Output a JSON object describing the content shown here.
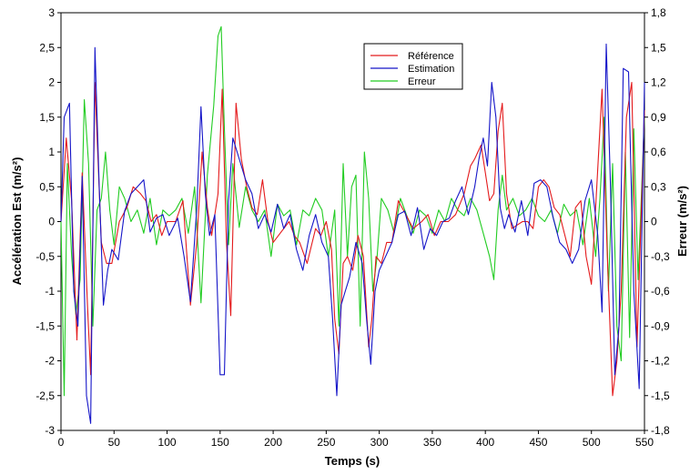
{
  "chart_data": {
    "type": "line",
    "xlabel": "Temps (s)",
    "ylabel_left": "Accélération Est (m/s²)",
    "ylabel_right": "Erreur (m/s²)",
    "xlim": [
      0,
      550
    ],
    "ylim_left": [
      -3,
      3
    ],
    "ylim_right": [
      -1.8,
      1.8
    ],
    "xticks": [
      "0",
      "50",
      "100",
      "150",
      "200",
      "250",
      "300",
      "350",
      "400",
      "450",
      "500",
      "550"
    ],
    "yticks_left": [
      "-3",
      "-2,5",
      "-2",
      "-1,5",
      "-1",
      "-0,5",
      "0",
      "0,5",
      "1",
      "1,5",
      "2",
      "2,5",
      "3"
    ],
    "yticks_right": [
      "-1,8",
      "-1,5",
      "-1,2",
      "-0,9",
      "-0,6",
      "-0,3",
      "0",
      "0,3",
      "0,6",
      "0,9",
      "1,2",
      "1,5",
      "1,8"
    ],
    "grid": false,
    "legend_position": "top-center",
    "series": [
      {
        "name": "Référence",
        "color": "#e41a1c",
        "axis": "left",
        "x": [
          0,
          5,
          10,
          15,
          20,
          25,
          28,
          32,
          38,
          43,
          48,
          55,
          62,
          68,
          75,
          80,
          85,
          90,
          95,
          100,
          108,
          115,
          122,
          128,
          133,
          138,
          142,
          148,
          152,
          156,
          160,
          165,
          170,
          175,
          180,
          185,
          190,
          195,
          200,
          205,
          210,
          215,
          220,
          225,
          232,
          240,
          245,
          250,
          255,
          258,
          262,
          266,
          270,
          275,
          280,
          285,
          290,
          293,
          297,
          302,
          307,
          312,
          318,
          325,
          332,
          340,
          346,
          352,
          358,
          365,
          372,
          380,
          386,
          390,
          396,
          400,
          404,
          408,
          412,
          416,
          420,
          425,
          430,
          435,
          440,
          445,
          450,
          455,
          460,
          465,
          470,
          475,
          480,
          485,
          490,
          495,
          500,
          505,
          510,
          515,
          520,
          524,
          528,
          533,
          538,
          543,
          550
        ],
        "y": [
          0,
          1.2,
          0.3,
          -1.7,
          0.7,
          -1.2,
          -2.2,
          2.0,
          -0.3,
          -0.6,
          -0.6,
          0,
          0.2,
          0.5,
          0.4,
          0.3,
          0,
          0.1,
          -0.2,
          0,
          0,
          0.3,
          -1.2,
          -0.3,
          1.0,
          0.2,
          -0.2,
          0.4,
          1.9,
          -0.3,
          -1.35,
          1.7,
          0.9,
          0.5,
          0.2,
          0.1,
          0.6,
          0,
          -0.3,
          -0.2,
          -0.1,
          0,
          -0.2,
          -0.3,
          -0.6,
          -0.1,
          -0.2,
          0,
          -0.4,
          -1.4,
          -1.9,
          -0.6,
          -0.5,
          -0.7,
          -0.2,
          -0.5,
          -1.8,
          -1.4,
          -0.5,
          -0.6,
          -0.3,
          -0.3,
          0.3,
          0.1,
          -0.1,
          0,
          0.1,
          -0.2,
          0,
          0,
          0.1,
          0.4,
          0.8,
          0.9,
          1.1,
          0.7,
          0.3,
          0.4,
          1.3,
          1.7,
          0.4,
          -0.1,
          -0.05,
          0,
          0,
          -0.1,
          0.5,
          0.6,
          0.5,
          0.2,
          0.1,
          -0.2,
          -0.5,
          0.2,
          0.3,
          -0.5,
          -0.9,
          0.5,
          1.9,
          -0.5,
          -2.5,
          -2.0,
          -1.0,
          1.5,
          2.0,
          -1.8,
          1.6
        ]
      },
      {
        "name": "Estimation",
        "color": "#1515c8",
        "axis": "left",
        "x": [
          0,
          3,
          8,
          12,
          16,
          20,
          24,
          28,
          32,
          36,
          40,
          44,
          48,
          54,
          60,
          66,
          72,
          78,
          84,
          90,
          96,
          102,
          110,
          116,
          122,
          128,
          132,
          136,
          140,
          145,
          150,
          154,
          158,
          162,
          168,
          174,
          180,
          186,
          192,
          198,
          204,
          210,
          216,
          222,
          228,
          234,
          240,
          246,
          252,
          256,
          260,
          264,
          268,
          272,
          278,
          284,
          288,
          292,
          296,
          300,
          306,
          312,
          318,
          324,
          330,
          336,
          342,
          348,
          354,
          360,
          366,
          372,
          378,
          384,
          390,
          394,
          398,
          402,
          406,
          410,
          414,
          418,
          422,
          428,
          434,
          440,
          446,
          452,
          458,
          464,
          470,
          476,
          482,
          488,
          494,
          500,
          506,
          510,
          514,
          518,
          522,
          526,
          530,
          535,
          540,
          545,
          550
        ],
        "y": [
          0,
          1.5,
          1.7,
          -1.0,
          -1.5,
          0.65,
          -2.5,
          -2.9,
          2.5,
          0.5,
          -1.2,
          -0.7,
          -0.4,
          -0.55,
          0.15,
          0.4,
          0.5,
          0.6,
          -0.15,
          0.05,
          0.1,
          -0.2,
          0.05,
          -0.5,
          -1.15,
          0.2,
          1.65,
          0.4,
          -0.2,
          0.1,
          -2.2,
          -2.2,
          0.3,
          1.2,
          0.9,
          0.6,
          0.4,
          -0.1,
          0.1,
          -0.15,
          0.25,
          -0.1,
          0.1,
          -0.4,
          -0.7,
          -0.2,
          0.1,
          -0.3,
          -0.5,
          -1.4,
          -2.5,
          -1.2,
          -1.0,
          -0.8,
          -0.3,
          -0.6,
          -1.4,
          -2.05,
          -1.0,
          -0.7,
          -0.5,
          -0.3,
          0.1,
          0.15,
          -0.2,
          0.2,
          -0.4,
          -0.1,
          -0.2,
          0,
          0.05,
          0.3,
          0.5,
          0.1,
          0.5,
          0.9,
          1.2,
          0.8,
          2.0,
          1.5,
          0.2,
          -0.1,
          0.1,
          -0.15,
          0.3,
          -0.2,
          0.55,
          0.6,
          0.5,
          0.05,
          -0.3,
          -0.4,
          -0.6,
          -0.4,
          0.3,
          0.6,
          -0.2,
          -1.3,
          2.55,
          0.5,
          -2.2,
          -1.5,
          2.2,
          2.15,
          -1.0,
          -2.4,
          2.0
        ]
      },
      {
        "name": "Erreur",
        "color": "#22cc22",
        "axis": "right",
        "x": [
          0,
          3,
          6,
          10,
          14,
          18,
          22,
          26,
          30,
          34,
          38,
          42,
          46,
          50,
          55,
          60,
          66,
          72,
          78,
          84,
          90,
          96,
          102,
          108,
          114,
          120,
          126,
          132,
          138,
          144,
          148,
          151,
          154,
          158,
          162,
          168,
          174,
          180,
          186,
          192,
          198,
          204,
          210,
          216,
          222,
          228,
          234,
          240,
          246,
          252,
          258,
          262,
          266,
          270,
          274,
          278,
          282,
          286,
          290,
          294,
          298,
          302,
          308,
          314,
          320,
          326,
          332,
          338,
          344,
          350,
          356,
          362,
          368,
          374,
          380,
          386,
          392,
          398,
          404,
          408,
          412,
          416,
          420,
          426,
          432,
          438,
          444,
          450,
          456,
          462,
          468,
          474,
          480,
          486,
          492,
          498,
          504,
          508,
          512,
          516,
          520,
          524,
          528,
          532,
          536,
          540,
          544,
          550
        ],
        "y": [
          0,
          -1.5,
          0.5,
          -0.3,
          -0.8,
          -0.5,
          1.05,
          0.5,
          -0.9,
          0.1,
          0.2,
          0.6,
          0.1,
          -0.2,
          0.3,
          0.2,
          0,
          0.1,
          -0.1,
          0.2,
          -0.2,
          0.1,
          0.05,
          0.1,
          0.2,
          -0.1,
          0.3,
          -0.7,
          0.4,
          1.0,
          1.6,
          1.68,
          0.8,
          -0.2,
          0.5,
          -0.05,
          0.3,
          0.1,
          0,
          0.1,
          -0.3,
          0.15,
          0.05,
          0.1,
          -0.2,
          0.1,
          0.05,
          0.2,
          0.1,
          -0.3,
          0.1,
          -0.9,
          0.5,
          -0.3,
          0.3,
          0.4,
          -0.9,
          0.6,
          0.2,
          -0.6,
          -0.3,
          0.2,
          0.1,
          -0.1,
          0.2,
          0.05,
          -0.1,
          0.1,
          0.05,
          -0.1,
          0.1,
          0,
          0.2,
          0.1,
          0.05,
          0.2,
          0.1,
          -0.1,
          -0.3,
          -0.5,
          0.1,
          0.4,
          0.1,
          0.2,
          0.05,
          0.1,
          0.2,
          0.05,
          0,
          0.1,
          -0.1,
          0.15,
          0.05,
          0.1,
          -0.2,
          0.2,
          -0.3,
          0.2,
          0.9,
          -0.6,
          0.5,
          -0.9,
          -1.2,
          0.6,
          -1.0,
          0.8,
          -0.5,
          0.9
        ]
      }
    ]
  }
}
